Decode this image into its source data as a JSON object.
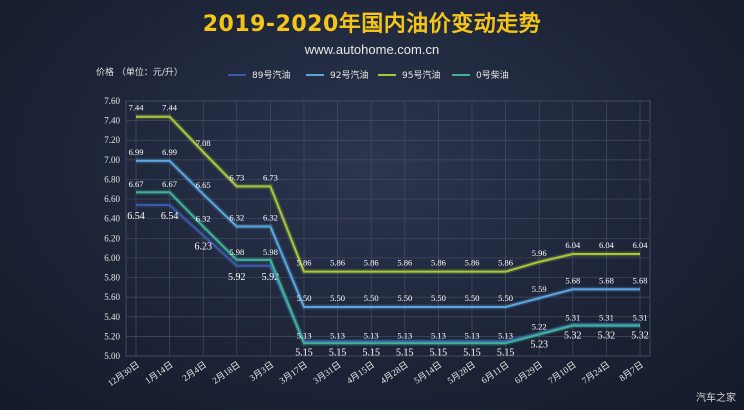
{
  "title": "2019-2020年国内油价变动走势",
  "subtitle": "www.autohome.com.cn",
  "watermark": "汽车之家",
  "chart_data": {
    "type": "line",
    "title": "2019-2020年国内油价变动走势",
    "ylabel": "价格 （单位：元/升）",
    "xlabel": "",
    "ylim": [
      5.0,
      7.6
    ],
    "y_ticks": [
      "7.60",
      "7.40",
      "7.20",
      "7.00",
      "6.80",
      "6.60",
      "6.40",
      "6.20",
      "6.00",
      "5.80",
      "5.60",
      "5.40",
      "5.20",
      "5.00"
    ],
    "categories": [
      "12月30日",
      "1月14日",
      "2月4日",
      "2月18日",
      "3月3日",
      "3月17日",
      "3月31日",
      "4月15日",
      "4月28日",
      "5月14日",
      "5月28日",
      "6月11日",
      "6月29日",
      "7月10日",
      "7月24日",
      "8月7日"
    ],
    "grid": true,
    "legend_position": "top",
    "series": [
      {
        "name": "89号汽油",
        "color": "#3a5aa8",
        "values": [
          6.54,
          6.54,
          6.23,
          5.92,
          5.92,
          5.15,
          5.15,
          5.15,
          5.15,
          5.15,
          5.15,
          5.15,
          5.23,
          5.32,
          5.32,
          5.32
        ],
        "labels": [
          "6.54",
          "6.54",
          "6.23",
          "5.92",
          "5.92",
          "5.15",
          "5.15",
          "5.15",
          "5.15",
          "5.15",
          "5.15",
          "5.15",
          "5.23",
          "5.32",
          "5.32",
          "5.32"
        ]
      },
      {
        "name": "92号汽油",
        "color": "#5aa7df",
        "values": [
          6.99,
          6.99,
          6.65,
          6.32,
          6.32,
          5.5,
          5.5,
          5.5,
          5.5,
          5.5,
          5.5,
          5.5,
          5.59,
          5.68,
          5.68,
          5.68
        ],
        "labels": [
          "6.99",
          "6.99",
          "6.65",
          "6.32",
          "6.32",
          "5.50",
          "5.50",
          "5.50",
          "5.50",
          "5.50",
          "5.50",
          "5.50",
          "5.59",
          "5.68",
          "5.68",
          "5.68"
        ]
      },
      {
        "name": "95号汽油",
        "color": "#a8c83a",
        "values": [
          7.44,
          7.44,
          7.08,
          6.73,
          6.73,
          5.86,
          5.86,
          5.86,
          5.86,
          5.86,
          5.86,
          5.86,
          5.96,
          6.04,
          6.04,
          6.04
        ],
        "labels": [
          "7.44",
          "7.44",
          "7.08",
          "6.73",
          "6.73",
          "5.86",
          "5.86",
          "5.86",
          "5.86",
          "5.86",
          "5.86",
          "5.86",
          "5.96",
          "6.04",
          "6.04",
          "6.04"
        ]
      },
      {
        "name": "0号柴油",
        "color": "#3fb39a",
        "values": [
          6.67,
          6.67,
          6.32,
          5.98,
          5.98,
          5.13,
          5.13,
          5.13,
          5.13,
          5.13,
          5.13,
          5.13,
          5.22,
          5.31,
          5.31,
          5.31
        ],
        "labels": [
          "6.67",
          "6.67",
          "6.32",
          "5.98",
          "5.98",
          "5.13",
          "5.13",
          "5.13",
          "5.13",
          "5.13",
          "5.13",
          "5.13",
          "5.22",
          "5.31",
          "5.31",
          "5.31"
        ]
      }
    ]
  }
}
